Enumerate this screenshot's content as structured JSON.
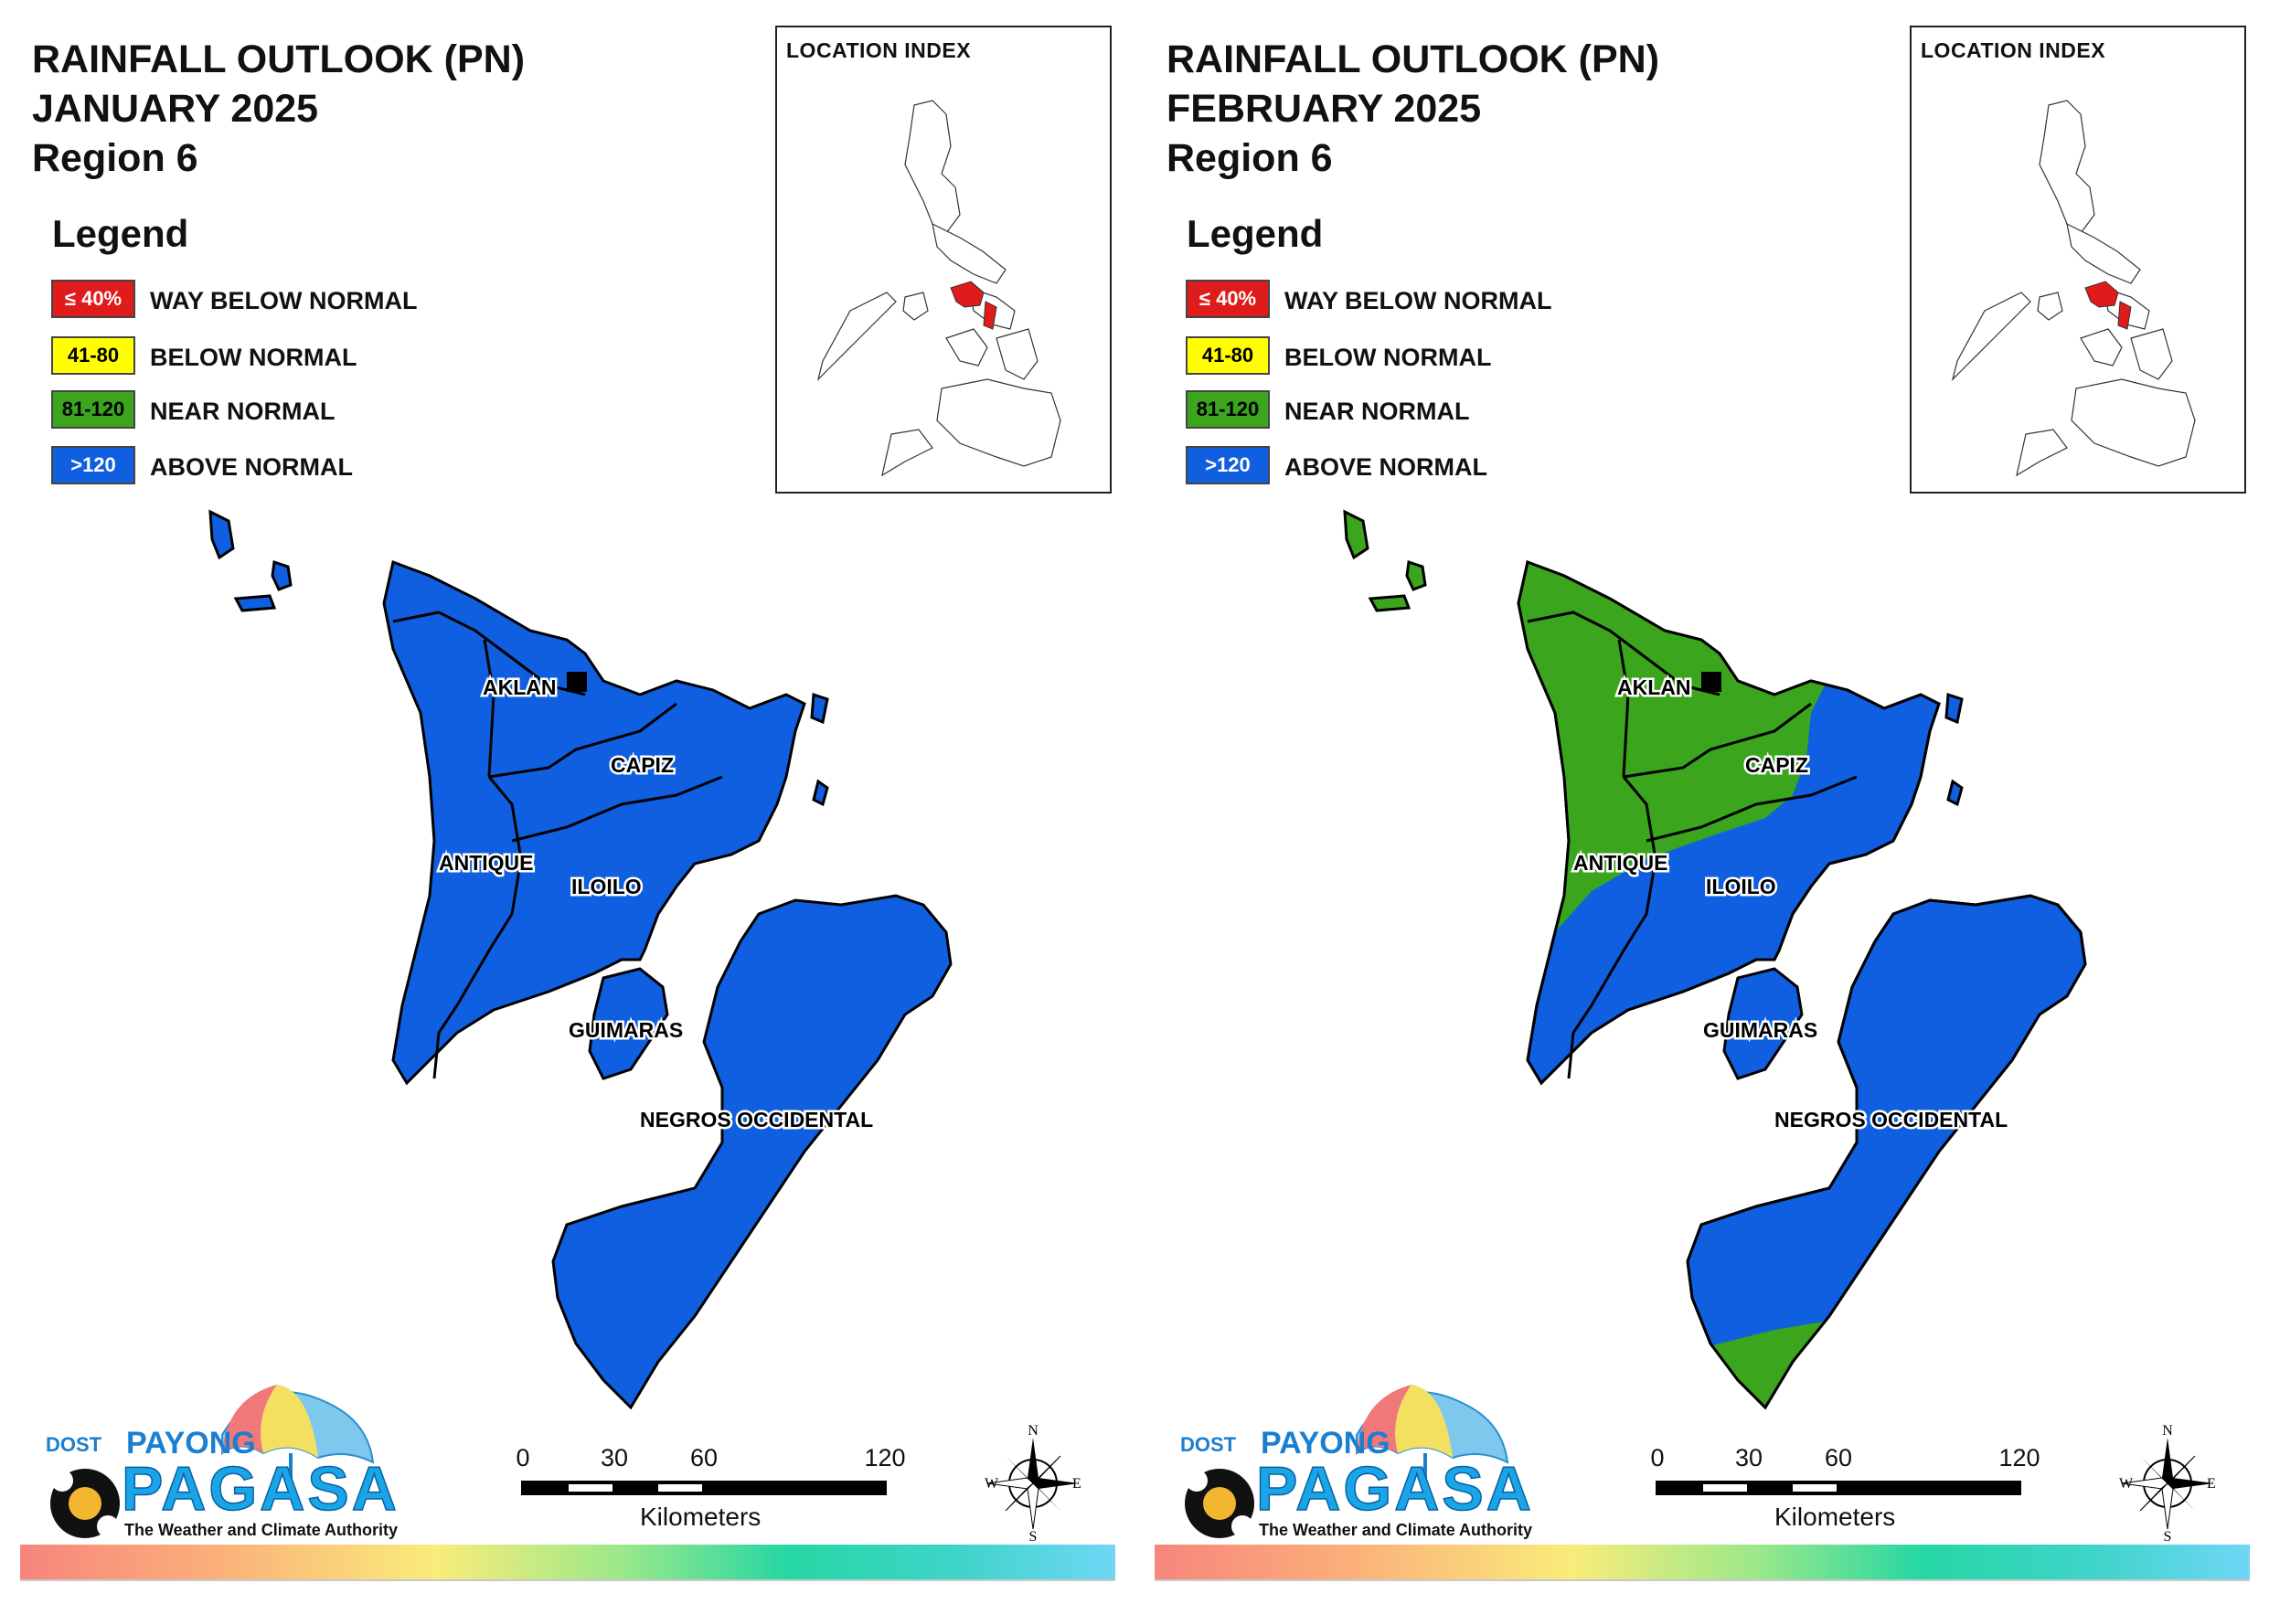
{
  "colors": {
    "way_below": "#e01b1b",
    "below": "#ffff00",
    "near": "#3aa51d",
    "above": "#0f5fe0"
  },
  "legend": {
    "title": "Legend",
    "items": [
      {
        "code": "≤ 40%",
        "label": "WAY BELOW NORMAL",
        "color": "#e01b1b",
        "text_color": "#ffffff"
      },
      {
        "code": "41-80",
        "label": "BELOW NORMAL",
        "color": "#ffff00",
        "text_color": "#000000"
      },
      {
        "code": "81-120",
        "label": "NEAR NORMAL",
        "color": "#3aa51d",
        "text_color": "#000000"
      },
      {
        "code": ">120",
        "label": "ABOVE NORMAL",
        "color": "#0f5fe0",
        "text_color": "#ffffff"
      }
    ]
  },
  "inset": {
    "label": "LOCATION INDEX"
  },
  "scale": {
    "ticks": [
      "0",
      "30",
      "60",
      "120"
    ],
    "unit": "Kilometers"
  },
  "compass": {
    "n": "N",
    "s": "S",
    "e": "E",
    "w": "W"
  },
  "logo": {
    "dost": "DOST",
    "payong": "PAYONG",
    "pagasa": "PAGASA",
    "tagline": "The Weather and Climate Authority"
  },
  "panels": [
    {
      "title_line1": "RAINFALL OUTLOOK (PN)",
      "title_line2": "JANUARY 2025",
      "title_line3": "Region 6",
      "provinces": [
        "AKLAN",
        "CAPIZ",
        "ANTIQUE",
        "ILOILO",
        "GUIMARAS",
        "NEGROS OCCIDENTAL"
      ],
      "category_by_area": {
        "all": "ABOVE NORMAL"
      }
    },
    {
      "title_line1": "RAINFALL OUTLOOK (PN)",
      "title_line2": "FEBRUARY 2025",
      "title_line3": "Region 6",
      "provinces": [
        "AKLAN",
        "CAPIZ",
        "ANTIQUE",
        "ILOILO",
        "GUIMARAS",
        "NEGROS OCCIDENTAL"
      ],
      "category_by_area": {
        "northwest_panay": "NEAR NORMAL",
        "southern_tip_negros": "NEAR NORMAL",
        "remainder": "ABOVE NORMAL"
      }
    }
  ]
}
